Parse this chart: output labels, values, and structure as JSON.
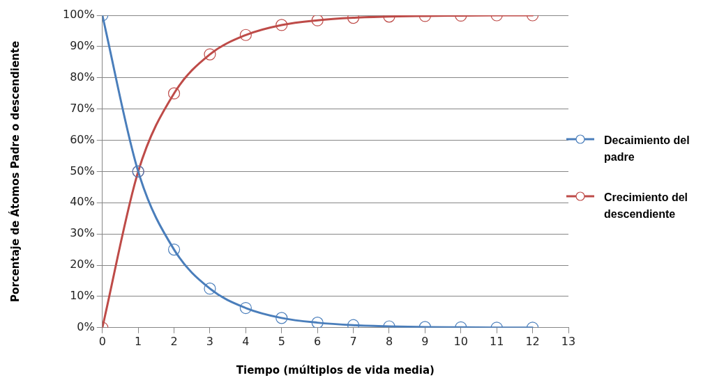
{
  "chart_data": {
    "type": "line",
    "xlabel": "Tiempo (múltiplos de vida media)",
    "ylabel": "Porcentaje de Átomos Padre o descendiente",
    "x": [
      0,
      1,
      2,
      3,
      4,
      5,
      6,
      7,
      8,
      9,
      10,
      11,
      12
    ],
    "series": [
      {
        "name": "Decaimiento del padre",
        "color": "#4a7ebb",
        "values": [
          100,
          50,
          25,
          12.5,
          6.3,
          3.1,
          1.6,
          0.8,
          0.4,
          0.2,
          0.1,
          0,
          0
        ]
      },
      {
        "name": "Crecimiento del descendiente",
        "color": "#be4b48",
        "values": [
          0,
          50,
          75,
          87.5,
          93.7,
          96.9,
          98.4,
          99.2,
          99.6,
          99.8,
          99.9,
          100,
          100
        ]
      }
    ],
    "xlim": [
      0,
      13
    ],
    "xticks": [
      0,
      1,
      2,
      3,
      4,
      5,
      6,
      7,
      8,
      9,
      10,
      11,
      12,
      13
    ],
    "ylim": [
      0,
      100
    ],
    "yticks": [
      {
        "value": 0,
        "label": "0%"
      },
      {
        "value": 10,
        "label": "10%"
      },
      {
        "value": 20,
        "label": "20%"
      },
      {
        "value": 30,
        "label": "30%"
      },
      {
        "value": 40,
        "label": "40%"
      },
      {
        "value": 50,
        "label": "50%"
      },
      {
        "value": 60,
        "label": "60%"
      },
      {
        "value": 70,
        "label": "70%"
      },
      {
        "value": 80,
        "label": "80%"
      },
      {
        "value": 90,
        "label": "90%"
      },
      {
        "value": 100,
        "label": "100%"
      }
    ],
    "grid": "y",
    "legend": "right",
    "marker": "circle",
    "line_style": "solid"
  }
}
